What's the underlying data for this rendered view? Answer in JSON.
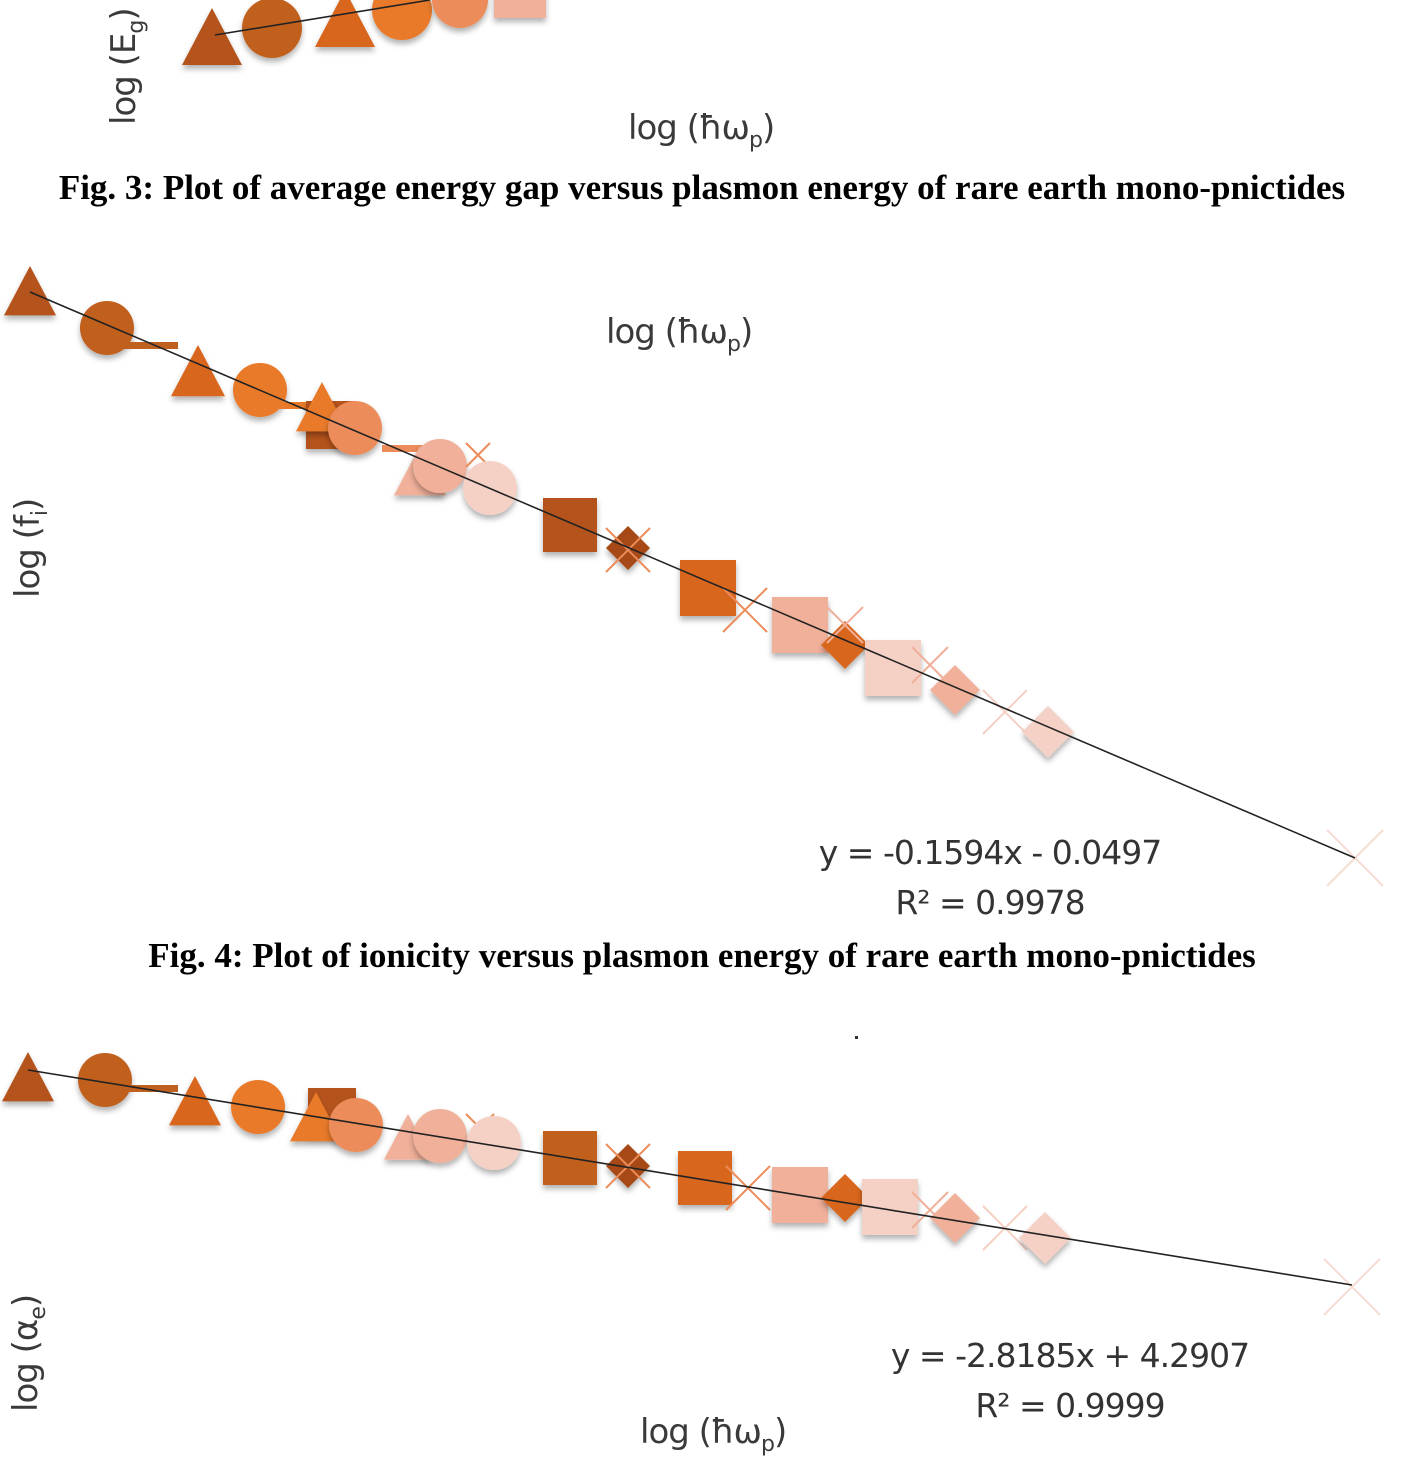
{
  "figures": [
    {
      "caption": "Fig. 3: Plot of average energy gap versus plasmon energy of rare earth mono-pnictides",
      "x_axis_label": {
        "base": "log (ħω",
        "sub": "p",
        "close": ")"
      },
      "y_axis_label": {
        "base": "log (E",
        "sub": "g",
        "close": ")"
      }
    },
    {
      "caption": "Fig. 4: Plot of ionicity versus plasmon energy of rare earth mono-pnictides",
      "x_axis_label": {
        "base": "log (ħω",
        "sub": "p",
        "close": ")"
      },
      "y_axis_label": {
        "base": "log (f",
        "sub": "i",
        "close": ")"
      },
      "fit_equation": "y = -0.1594x - 0.0497",
      "r_squared": "R² = 0.9978"
    },
    {
      "x_axis_label": {
        "base": "log  (ħω",
        "sub": "p",
        "close": ")"
      },
      "y_axis_label": {
        "base": "log (α",
        "sub": "e",
        "close": ")"
      },
      "fit_equation": "y = -2.8185x + 4.2907",
      "r_squared": "R² = 0.9999"
    }
  ],
  "marker_colors": [
    "#b5521b",
    "#c0601f",
    "#d8661e",
    "#e87a2a",
    "#ec8c5a",
    "#f0b09a",
    "#f5d0c5"
  ]
}
